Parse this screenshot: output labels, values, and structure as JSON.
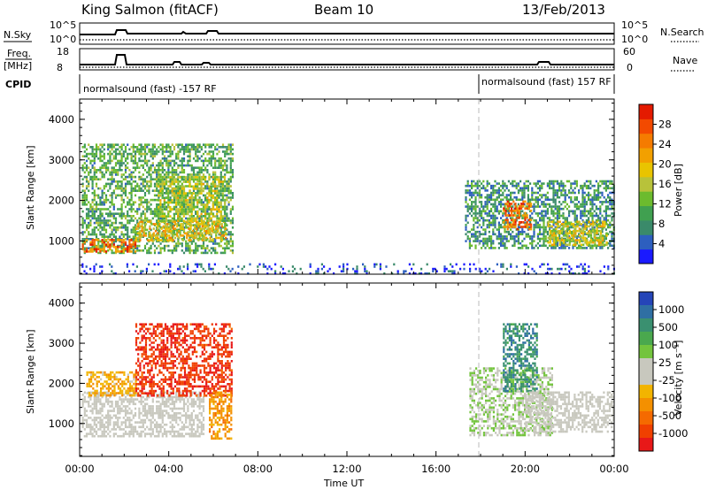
{
  "header": {
    "station": "King Salmon (fitACF)",
    "beam": "Beam 10",
    "date": "13/Feb/2013"
  },
  "status_panels": {
    "nsky": {
      "label": "N.Sky",
      "top_tick": "10^5",
      "bottom_tick": "10^0"
    },
    "nsearch": {
      "label": "N.Search",
      "top_tick": "10^5",
      "bottom_tick": "10^0"
    },
    "freq": {
      "label_top": "Freq.",
      "label_bottom": "[MHz]",
      "top_tick": "18",
      "bottom_tick": "8"
    },
    "nave": {
      "label": "Nave",
      "top_tick": "60",
      "bottom_tick": "0"
    },
    "cpid": {
      "label": "CPID",
      "segments": [
        {
          "text": "normalsound (fast) -157 RF",
          "start_hour": 0
        },
        {
          "text": "normalsound (fast) 157 RF",
          "start_hour": 18.05
        }
      ]
    }
  },
  "axes": {
    "x_label": "Time UT",
    "x_ticks": [
      "00:00",
      "04:00",
      "08:00",
      "12:00",
      "16:00",
      "20:00",
      "00:00"
    ],
    "y_label": "Slant Range [km]",
    "y_ticks": [
      "1000",
      "2000",
      "3000",
      "4000"
    ]
  },
  "colorbars": {
    "power": {
      "label": "Power [dB]",
      "ticks": [
        "4",
        "8",
        "12",
        "16",
        "20",
        "24",
        "28"
      ],
      "colors": [
        "#1a1aff",
        "#2d5fbf",
        "#3a8a6a",
        "#40a050",
        "#6cbb2e",
        "#b8c23a",
        "#e9c400",
        "#f2a000",
        "#f57b00",
        "#f34a00",
        "#e41a00"
      ]
    },
    "velocity": {
      "label": "Velocity [m s⁻¹]",
      "ticks": [
        "1000",
        "500",
        "100",
        "25",
        "-25",
        "-100",
        "-500",
        "-1000"
      ],
      "colors": [
        "#2545b8",
        "#2f6fa3",
        "#3a9070",
        "#4aa84e",
        "#73c43d",
        "#c8c8be",
        "#c8c8be",
        "#f2b400",
        "#f49000",
        "#f56a00",
        "#f04000",
        "#e81818"
      ]
    }
  },
  "chart_data": [
    {
      "type": "heatmap",
      "panel": "power",
      "x_range_hours": [
        0,
        24
      ],
      "y_range_km": [
        180,
        4500
      ],
      "color_scale_db": [
        0,
        30
      ],
      "regions": [
        {
          "t0": 0.1,
          "t1": 6.9,
          "r0": 700,
          "r1": 3400,
          "level_db": 10,
          "note": "broad scatter"
        },
        {
          "t0": 0.1,
          "t1": 2.5,
          "r0": 750,
          "r1": 1050,
          "level_db": 24
        },
        {
          "t0": 2.5,
          "t1": 6.6,
          "r0": 1000,
          "r1": 1500,
          "level_db": 18
        },
        {
          "t0": 3.5,
          "t1": 6.5,
          "r0": 1500,
          "r1": 2600,
          "level_db": 15
        },
        {
          "t0": 17.3,
          "t1": 24.0,
          "r0": 800,
          "r1": 2500,
          "level_db": 8
        },
        {
          "t0": 19.0,
          "t1": 20.3,
          "r0": 1300,
          "r1": 2000,
          "level_db": 24
        },
        {
          "t0": 21.0,
          "t1": 23.7,
          "r0": 900,
          "r1": 1500,
          "level_db": 16
        },
        {
          "t0": 0,
          "t1": 24,
          "r0": 200,
          "r1": 450,
          "level_db": 3,
          "note": "near-range scatter"
        }
      ]
    },
    {
      "type": "heatmap",
      "panel": "velocity",
      "x_range_hours": [
        0,
        24
      ],
      "y_range_km": [
        180,
        4500
      ],
      "color_scale_ms": [
        -1000,
        1000
      ],
      "regions": [
        {
          "t0": 0.1,
          "t1": 5.6,
          "r0": 700,
          "r1": 1800,
          "velocity_ms": 0,
          "note": "ground scatter"
        },
        {
          "t0": 0.3,
          "t1": 2.5,
          "r0": 1700,
          "r1": 2300,
          "velocity_ms": -300
        },
        {
          "t0": 2.5,
          "t1": 6.8,
          "r0": 1700,
          "r1": 3500,
          "velocity_ms": -800
        },
        {
          "t0": 5.8,
          "t1": 6.8,
          "r0": 600,
          "r1": 1800,
          "velocity_ms": -400
        },
        {
          "t0": 17.5,
          "t1": 21.2,
          "r0": 700,
          "r1": 2400,
          "velocity_ms": 150
        },
        {
          "t0": 19.0,
          "t1": 20.5,
          "r0": 1800,
          "r1": 3500,
          "velocity_ms": 600
        },
        {
          "t0": 20.0,
          "t1": 24.0,
          "r0": 800,
          "r1": 1800,
          "velocity_ms": 0
        }
      ]
    }
  ]
}
